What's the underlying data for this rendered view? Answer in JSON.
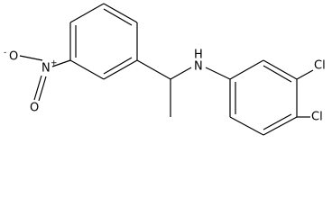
{
  "atoms": [
    {
      "label": "O",
      "charge": "-"
    },
    {
      "label": "N",
      "charge": "+"
    },
    {
      "label": "O"
    },
    {
      "label": "H"
    },
    {
      "label": "N"
    },
    {
      "label": "Cl"
    },
    {
      "label": "Cl"
    }
  ]
}
